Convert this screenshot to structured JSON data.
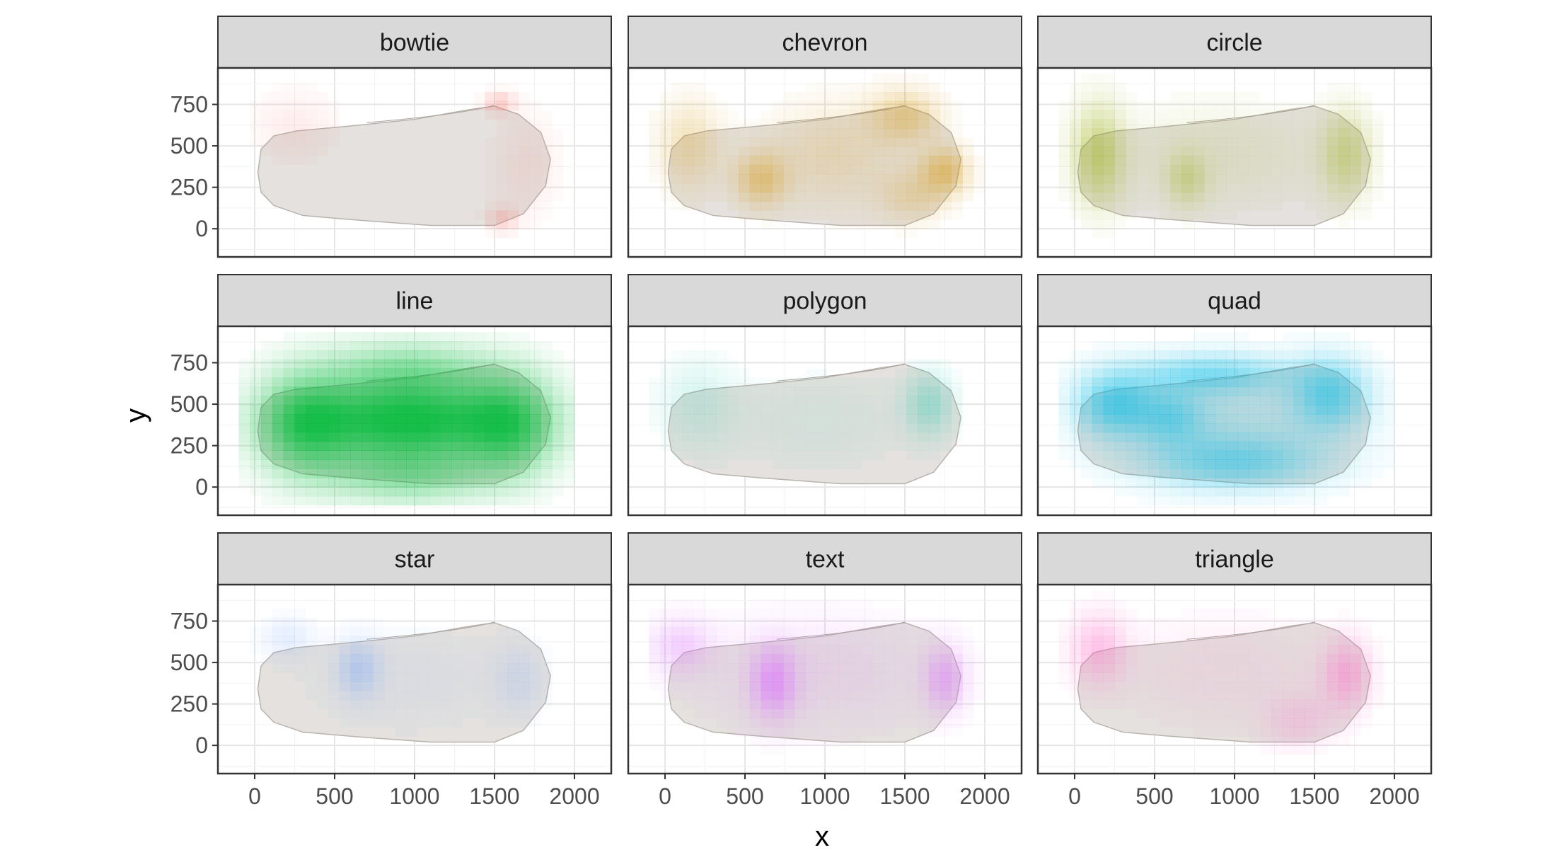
{
  "chart_data": {
    "type": "heatmap",
    "subtype": "faceted-tile-density-over-shoe-sole-image",
    "facet_layout": "3x3",
    "xlabel": "x",
    "ylabel": "y",
    "xlim": [
      -230,
      2230
    ],
    "ylim": [
      -170,
      970
    ],
    "x_ticks": [
      0,
      500,
      1000,
      1500,
      2000
    ],
    "x_tick_labels": [
      "0",
      "500",
      "1000",
      "1500",
      "2000"
    ],
    "y_ticks": [
      0,
      250,
      500,
      750
    ],
    "y_tick_labels": [
      "0",
      "250",
      "500",
      "750"
    ],
    "grid": true,
    "legend": "none",
    "background_image": "shoe-sole",
    "facets": [
      {
        "name": "bowtie",
        "color": "#F8766D",
        "blobs": [
          {
            "x": 1530,
            "y": 760,
            "sx": 90,
            "sy": 60,
            "a": 0.35
          },
          {
            "x": 1550,
            "y": 60,
            "sx": 90,
            "sy": 70,
            "a": 0.3
          },
          {
            "x": 250,
            "y": 620,
            "sx": 250,
            "sy": 200,
            "a": 0.12
          },
          {
            "x": 1700,
            "y": 400,
            "sx": 200,
            "sy": 300,
            "a": 0.12
          }
        ]
      },
      {
        "name": "chevron",
        "color": "#D39200",
        "blobs": [
          {
            "x": 600,
            "y": 300,
            "sx": 150,
            "sy": 150,
            "a": 0.4
          },
          {
            "x": 1750,
            "y": 350,
            "sx": 140,
            "sy": 130,
            "a": 0.45
          },
          {
            "x": 1500,
            "y": 680,
            "sx": 200,
            "sy": 150,
            "a": 0.35
          },
          {
            "x": 150,
            "y": 500,
            "sx": 180,
            "sy": 250,
            "a": 0.25
          },
          {
            "x": 1050,
            "y": 450,
            "sx": 400,
            "sy": 300,
            "a": 0.18
          },
          {
            "x": 1550,
            "y": 200,
            "sx": 200,
            "sy": 150,
            "a": 0.22
          }
        ]
      },
      {
        "name": "circle",
        "color": "#93AA00",
        "blobs": [
          {
            "x": 150,
            "y": 450,
            "sx": 150,
            "sy": 280,
            "a": 0.45
          },
          {
            "x": 700,
            "y": 300,
            "sx": 120,
            "sy": 150,
            "a": 0.28
          },
          {
            "x": 1700,
            "y": 450,
            "sx": 150,
            "sy": 250,
            "a": 0.35
          },
          {
            "x": 900,
            "y": 450,
            "sx": 600,
            "sy": 300,
            "a": 0.12
          }
        ]
      },
      {
        "name": "line",
        "color": "#00BA38",
        "blobs": [
          {
            "x": 950,
            "y": 400,
            "sx": 620,
            "sy": 230,
            "a": 0.92
          },
          {
            "x": 300,
            "y": 380,
            "sx": 260,
            "sy": 280,
            "a": 0.55
          },
          {
            "x": 1600,
            "y": 380,
            "sx": 260,
            "sy": 280,
            "a": 0.55
          },
          {
            "x": 950,
            "y": 720,
            "sx": 500,
            "sy": 160,
            "a": 0.35
          },
          {
            "x": 950,
            "y": 60,
            "sx": 500,
            "sy": 160,
            "a": 0.35
          }
        ]
      },
      {
        "name": "polygon",
        "color": "#00C19F",
        "blobs": [
          {
            "x": 1650,
            "y": 500,
            "sx": 140,
            "sy": 180,
            "a": 0.3
          },
          {
            "x": 200,
            "y": 500,
            "sx": 220,
            "sy": 260,
            "a": 0.14
          },
          {
            "x": 950,
            "y": 400,
            "sx": 600,
            "sy": 300,
            "a": 0.07
          }
        ]
      },
      {
        "name": "quad",
        "color": "#00B9E3",
        "blobs": [
          {
            "x": 250,
            "y": 500,
            "sx": 220,
            "sy": 180,
            "a": 0.55
          },
          {
            "x": 1600,
            "y": 560,
            "sx": 220,
            "sy": 200,
            "a": 0.5
          },
          {
            "x": 850,
            "y": 680,
            "sx": 450,
            "sy": 110,
            "a": 0.4
          },
          {
            "x": 1000,
            "y": 150,
            "sx": 500,
            "sy": 150,
            "a": 0.4
          },
          {
            "x": 600,
            "y": 420,
            "sx": 200,
            "sy": 150,
            "a": 0.35
          },
          {
            "x": 950,
            "y": 400,
            "sx": 700,
            "sy": 330,
            "a": 0.2
          }
        ]
      },
      {
        "name": "star",
        "color": "#619CFF",
        "blobs": [
          {
            "x": 650,
            "y": 460,
            "sx": 120,
            "sy": 160,
            "a": 0.3
          },
          {
            "x": 200,
            "y": 650,
            "sx": 150,
            "sy": 120,
            "a": 0.15
          },
          {
            "x": 1650,
            "y": 400,
            "sx": 150,
            "sy": 200,
            "a": 0.15
          },
          {
            "x": 950,
            "y": 400,
            "sx": 650,
            "sy": 330,
            "a": 0.07
          }
        ]
      },
      {
        "name": "text",
        "color": "#DB72FB",
        "blobs": [
          {
            "x": 680,
            "y": 380,
            "sx": 130,
            "sy": 200,
            "a": 0.55
          },
          {
            "x": 1750,
            "y": 400,
            "sx": 120,
            "sy": 180,
            "a": 0.45
          },
          {
            "x": 100,
            "y": 600,
            "sx": 180,
            "sy": 160,
            "a": 0.3
          },
          {
            "x": 950,
            "y": 450,
            "sx": 700,
            "sy": 330,
            "a": 0.15
          }
        ]
      },
      {
        "name": "triangle",
        "color": "#FF61C3",
        "blobs": [
          {
            "x": 150,
            "y": 580,
            "sx": 160,
            "sy": 200,
            "a": 0.35
          },
          {
            "x": 1700,
            "y": 430,
            "sx": 140,
            "sy": 200,
            "a": 0.4
          },
          {
            "x": 1400,
            "y": 150,
            "sx": 200,
            "sy": 150,
            "a": 0.2
          },
          {
            "x": 950,
            "y": 450,
            "sx": 650,
            "sy": 330,
            "a": 0.1
          }
        ]
      }
    ]
  }
}
